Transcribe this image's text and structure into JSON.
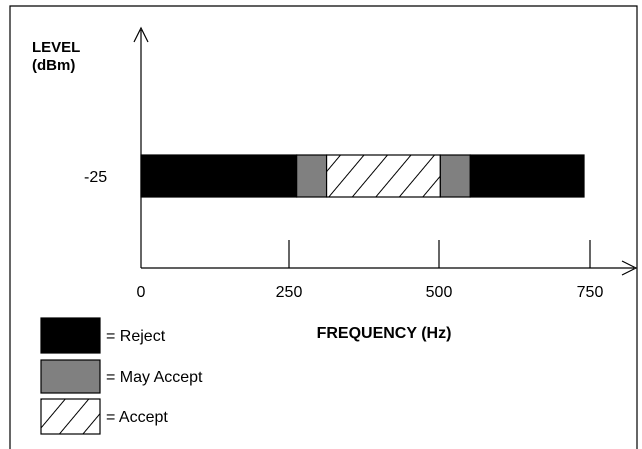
{
  "y_axis": {
    "label_line1": "LEVEL",
    "label_line2": "(dBm)",
    "tick_label": "-25"
  },
  "x_axis": {
    "title": "FREQUENCY (Hz)",
    "ticks": [
      "0",
      "250",
      "500",
      "750"
    ]
  },
  "band": {
    "level_dbm": -25,
    "segments": [
      {
        "kind": "reject",
        "from_hz": 0,
        "to_hz": 260
      },
      {
        "kind": "may_accept",
        "from_hz": 260,
        "to_hz": 310
      },
      {
        "kind": "accept",
        "from_hz": 310,
        "to_hz": 500
      },
      {
        "kind": "may_accept",
        "from_hz": 500,
        "to_hz": 550
      },
      {
        "kind": "reject",
        "from_hz": 550,
        "to_hz": 740
      }
    ]
  },
  "legend": [
    {
      "kind": "reject",
      "label": "= Reject"
    },
    {
      "kind": "may_accept",
      "label": "= May Accept"
    },
    {
      "kind": "accept",
      "label": "= Accept"
    }
  ],
  "colors": {
    "reject": "#000000",
    "may_accept": "#808080",
    "accept_bg": "#ffffff",
    "line": "#000000"
  }
}
